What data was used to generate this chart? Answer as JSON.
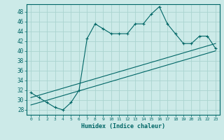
{
  "xlabel": "Humidex (Indice chaleur)",
  "bg_color": "#cceae8",
  "grid_color": "#aad4d0",
  "line_color": "#006666",
  "xlim": [
    -0.5,
    23.5
  ],
  "ylim": [
    27,
    49.5
  ],
  "yticks": [
    28,
    30,
    32,
    34,
    36,
    38,
    40,
    42,
    44,
    46,
    48
  ],
  "xticks": [
    0,
    1,
    2,
    3,
    4,
    5,
    6,
    7,
    8,
    9,
    10,
    11,
    12,
    13,
    14,
    15,
    16,
    17,
    18,
    19,
    20,
    21,
    22,
    23
  ],
  "curve1_x": [
    0,
    1,
    2,
    3,
    4,
    5,
    6,
    7,
    8,
    9,
    10,
    11,
    12,
    13,
    14,
    15,
    16,
    17,
    18,
    19,
    20,
    21,
    22,
    23
  ],
  "curve1_y": [
    31.5,
    30.5,
    29.5,
    28.5,
    28.0,
    29.5,
    32.0,
    42.5,
    45.5,
    44.5,
    43.5,
    43.5,
    43.5,
    45.5,
    45.5,
    47.5,
    49.0,
    45.5,
    43.5,
    41.5,
    41.5,
    43.0,
    43.0,
    40.5
  ],
  "line1_x": [
    0,
    23
  ],
  "line1_y": [
    29.0,
    40.0
  ],
  "line2_x": [
    0,
    23
  ],
  "line2_y": [
    30.5,
    41.5
  ]
}
